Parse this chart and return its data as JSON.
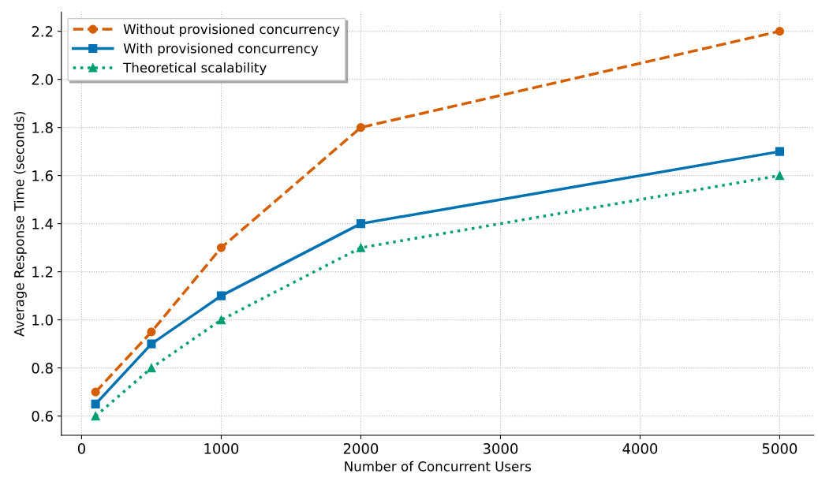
{
  "chart_data": {
    "type": "line",
    "xlabel": "Number of Concurrent Users",
    "ylabel": "Average Response Time (seconds)",
    "x": [
      100,
      500,
      1000,
      2000,
      5000
    ],
    "series": [
      {
        "name": "Without provisioned concurrency",
        "color": "#d55e00",
        "values": [
          0.7,
          0.95,
          1.3,
          1.8,
          2.2
        ],
        "marker": "circle",
        "line_style": "dashed"
      },
      {
        "name": "With provisioned concurrency",
        "color": "#0072b2",
        "values": [
          0.65,
          0.9,
          1.1,
          1.4,
          1.7
        ],
        "marker": "square",
        "line_style": "solid"
      },
      {
        "name": "Theoretical scalability",
        "color": "#009e73",
        "values": [
          0.6,
          0.8,
          1.0,
          1.3,
          1.6
        ],
        "marker": "triangle",
        "line_style": "dotted"
      }
    ],
    "xlim": [
      -145,
      5245
    ],
    "xticks": [
      0,
      1000,
      2000,
      3000,
      4000,
      5000
    ],
    "ylim": [
      0.52,
      2.28
    ],
    "yticks": [
      {
        "value": 0.6,
        "label": "0.6"
      },
      {
        "value": 0.8,
        "label": "0.8"
      },
      {
        "value": 1.0,
        "label": "1.0"
      },
      {
        "value": 1.2,
        "label": "1.2"
      },
      {
        "value": 1.4,
        "label": "1.4"
      },
      {
        "value": 1.6,
        "label": "1.6"
      },
      {
        "value": 1.8,
        "label": "1.8"
      },
      {
        "value": 2.0,
        "label": "2.0"
      },
      {
        "value": 2.2,
        "label": "2.2"
      }
    ],
    "grid": true,
    "legend": "top left"
  }
}
